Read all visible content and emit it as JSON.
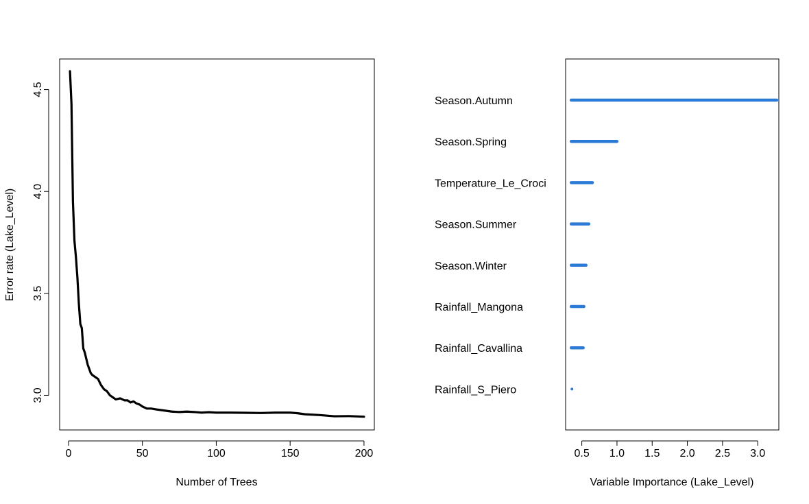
{
  "chart_data": [
    {
      "type": "line",
      "xlabel": "Number of Trees",
      "ylabel": "Error rate (Lake_Level)",
      "xlim": [
        -6,
        207
      ],
      "ylim": [
        2.83,
        4.65
      ],
      "xticks": [
        0,
        50,
        100,
        150,
        200
      ],
      "yticks": [
        3.0,
        3.5,
        4.0,
        4.5
      ],
      "ytick_labels": [
        "3.0",
        "3.5",
        "4.0",
        "4.5"
      ],
      "line_color": "#000000",
      "series": [
        {
          "x": [
            1,
            2,
            3,
            4,
            5,
            6,
            7,
            8,
            9,
            10,
            11,
            12,
            13,
            14,
            15,
            16,
            18,
            20,
            22,
            24,
            26,
            28,
            30,
            32,
            35,
            38,
            40,
            42,
            44,
            46,
            48,
            50,
            53,
            56,
            60,
            65,
            70,
            75,
            80,
            85,
            90,
            95,
            100,
            110,
            120,
            130,
            140,
            150,
            155,
            160,
            170,
            180,
            190,
            200
          ],
          "y": [
            4.59,
            4.43,
            3.95,
            3.76,
            3.68,
            3.58,
            3.45,
            3.35,
            3.33,
            3.23,
            3.21,
            3.18,
            3.15,
            3.13,
            3.11,
            3.1,
            3.09,
            3.08,
            3.05,
            3.03,
            3.02,
            3.0,
            2.99,
            2.98,
            2.985,
            2.975,
            2.975,
            2.965,
            2.97,
            2.96,
            2.955,
            2.945,
            2.935,
            2.935,
            2.93,
            2.925,
            2.92,
            2.918,
            2.92,
            2.918,
            2.915,
            2.917,
            2.915,
            2.915,
            2.914,
            2.913,
            2.915,
            2.915,
            2.912,
            2.907,
            2.903,
            2.897,
            2.898,
            2.895
          ]
        }
      ]
    },
    {
      "type": "dotchart",
      "xlabel": "Variable Importance (Lake_Level)",
      "xlim": [
        0.27,
        3.3
      ],
      "xticks": [
        0.5,
        1.0,
        1.5,
        2.0,
        2.5,
        3.0
      ],
      "xtick_labels": [
        "0.5",
        "1.0",
        "1.5",
        "2.0",
        "2.5",
        "3.0"
      ],
      "bar_color": "#2b7bd6",
      "categories": [
        "Season.Autumn",
        "Season.Spring",
        "Temperature_Le_Croci",
        "Season.Summer",
        "Season.Winter",
        "Rainfall_Mangona",
        "Rainfall_Cavallina",
        "Rainfall_S_Piero"
      ],
      "values": [
        3.27,
        1.0,
        0.65,
        0.6,
        0.56,
        0.53,
        0.52,
        0.36
      ],
      "baseline": 0.35
    }
  ]
}
